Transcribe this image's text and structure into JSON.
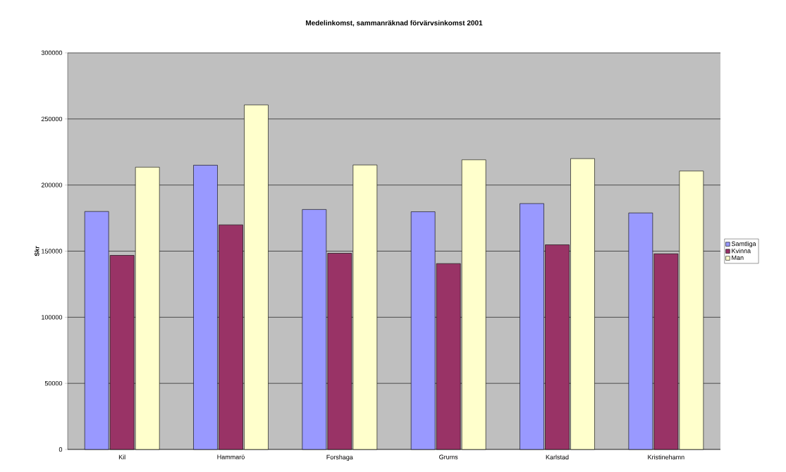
{
  "chart_data": {
    "type": "bar",
    "title": "Medelinkomst, sammanräknad förvärvsinkomst 2001",
    "ylabel": "Skr",
    "categories": [
      "Kil",
      "Hammarö",
      "Forshaga",
      "Grums",
      "Karlstad",
      "Kristinehamn"
    ],
    "series": [
      {
        "name": "Samtliga",
        "color": "#9999ff",
        "values": [
          180000,
          215000,
          181500,
          179800,
          186000,
          178900
        ]
      },
      {
        "name": "Kvinna",
        "color": "#993366",
        "values": [
          146800,
          169900,
          148400,
          140600,
          154800,
          148000
        ]
      },
      {
        "name": "Man",
        "color": "#ffffcc",
        "values": [
          213500,
          260600,
          215200,
          219100,
          220000,
          210600
        ]
      }
    ],
    "ylim": [
      0,
      300000
    ],
    "yticks": [
      0,
      50000,
      100000,
      150000,
      200000,
      250000,
      300000
    ],
    "grid": "y",
    "legend": "right"
  }
}
